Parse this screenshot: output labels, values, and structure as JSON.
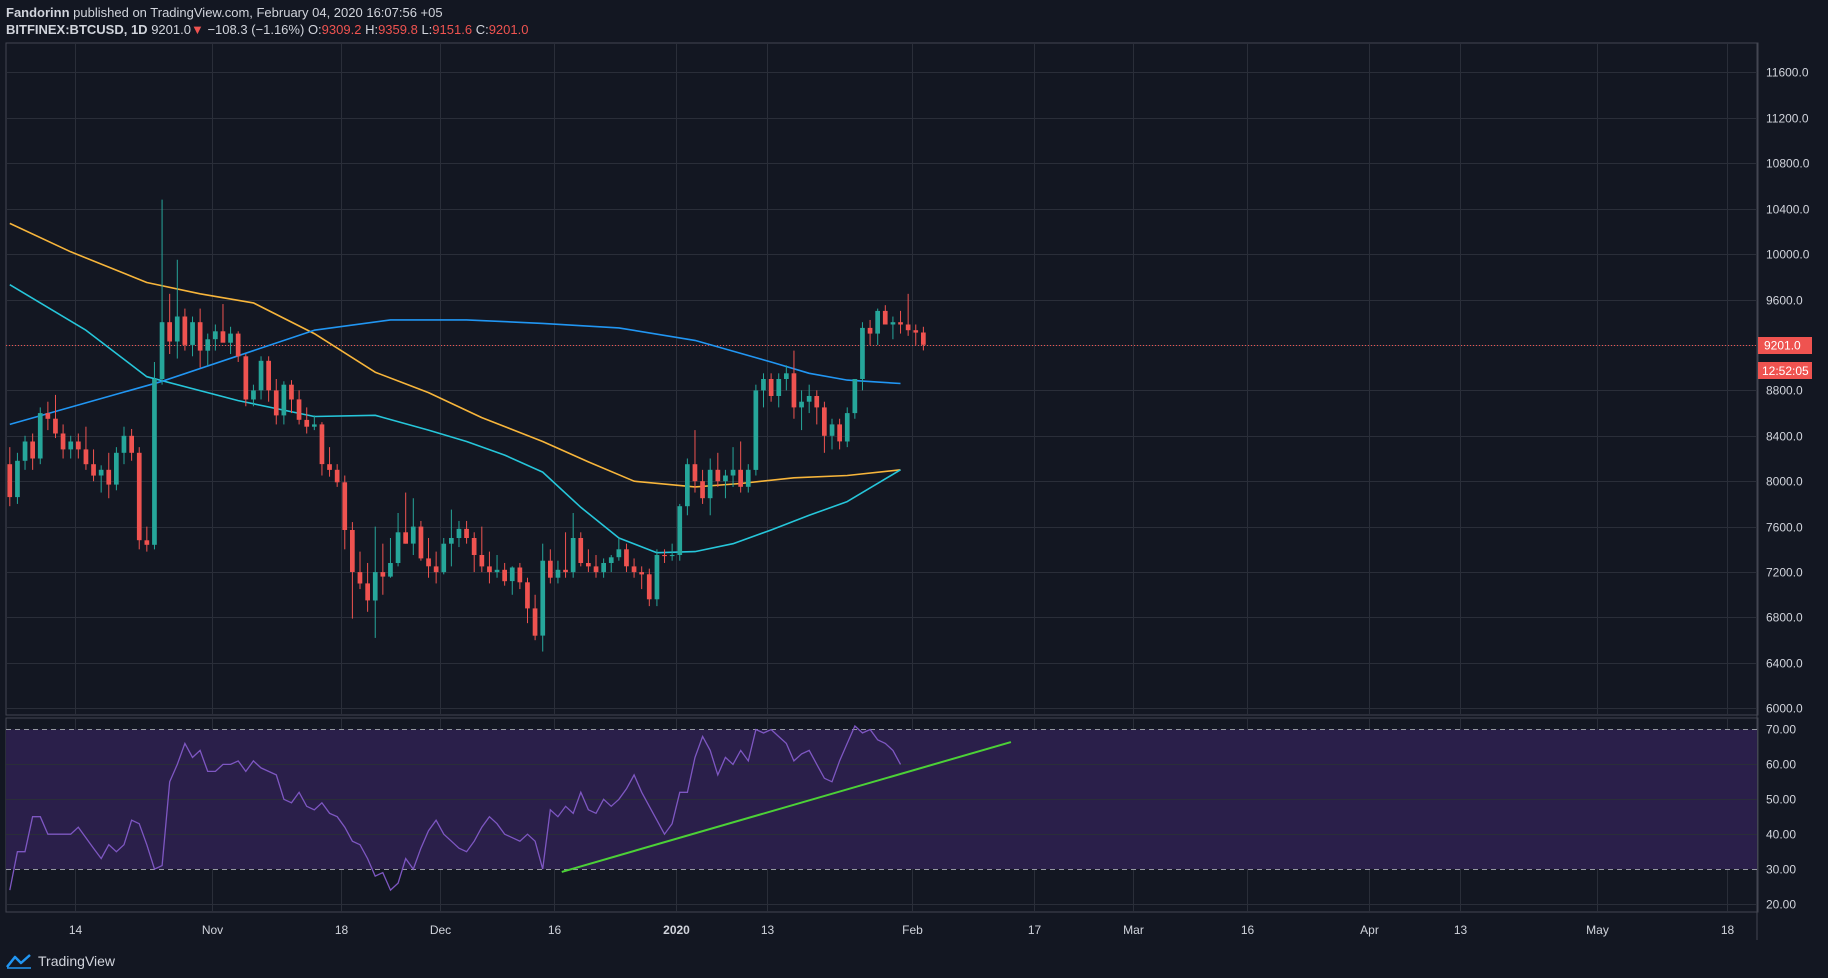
{
  "header": {
    "author": "Fandorinn",
    "published_text": "published on TradingView.com, February 04, 2020 16:07:56 +05",
    "symbol": "BITFINEX:BTCUSD, 1D",
    "last": "9201.0",
    "change_arrow": "▼",
    "change": "−108.3 (−1.16%)",
    "o_label": "O:",
    "o_value": "9309.2",
    "h_label": "H:",
    "h_value": "9359.8",
    "l_label": "L:",
    "l_value": "9151.6",
    "c_label": "C:",
    "c_value": "9201.0"
  },
  "price_tag": {
    "price": "9201.0",
    "countdown": "12:52:05"
  },
  "footer": {
    "brand": "TradingView",
    "brand_icon": "tradingview-logo-icon"
  },
  "colors": {
    "background": "#131722",
    "grid": "#2a2e39",
    "up": "#26a69a",
    "down": "#ef5350",
    "ma_blue": "#2196f3",
    "ma_cyan": "#26c6da",
    "ma_orange": "#f7b53b",
    "rsi_line": "#7e57c2",
    "rsi_band": "#2a1f4a",
    "trendline": "#4cd137"
  },
  "chart_data": [
    {
      "type": "candlestick",
      "title": "",
      "ylim": [
        5950,
        11850
      ],
      "y_ticks": [
        6000,
        6400,
        6800,
        7200,
        7600,
        8000,
        8400,
        8800,
        9200,
        9600,
        10000,
        10400,
        10800,
        11200,
        11600
      ],
      "y_tick_labels": [
        "6000.0",
        "6400.0",
        "6800.0",
        "7200.0",
        "7600.0",
        "8000.0",
        "8400.0",
        "8800.0",
        "9200.0",
        "9600.0",
        "10000.0",
        "10400.0",
        "10800.0",
        "11200.0",
        "11600.0"
      ],
      "x_ticks": [
        {
          "label": "14",
          "date": "2019-10-14",
          "bold": false
        },
        {
          "label": "Nov",
          "date": "2019-11-01",
          "bold": false
        },
        {
          "label": "18",
          "date": "2019-11-18",
          "bold": false
        },
        {
          "label": "Dec",
          "date": "2019-12-01",
          "bold": false
        },
        {
          "label": "16",
          "date": "2019-12-16",
          "bold": false
        },
        {
          "label": "2020",
          "date": "2020-01-01",
          "bold": true
        },
        {
          "label": "13",
          "date": "2020-01-13",
          "bold": false
        },
        {
          "label": "Feb",
          "date": "2020-02-01",
          "bold": false
        },
        {
          "label": "17",
          "date": "2020-02-17",
          "bold": false
        },
        {
          "label": "Mar",
          "date": "2020-03-01",
          "bold": false
        },
        {
          "label": "16",
          "date": "2020-03-16",
          "bold": false
        },
        {
          "label": "Apr",
          "date": "2020-04-01",
          "bold": false
        },
        {
          "label": "13",
          "date": "2020-04-13",
          "bold": false
        },
        {
          "label": "May",
          "date": "2020-05-01",
          "bold": false
        },
        {
          "label": "18",
          "date": "2020-05-18",
          "bold": false
        }
      ],
      "x_range": [
        "2019-10-05",
        "2020-05-22"
      ],
      "first_date": "2019-10-05",
      "last_price": 9201.0,
      "candles": [
        [
          8150,
          8300,
          7780,
          7860
        ],
        [
          7860,
          8250,
          7800,
          8180
        ],
        [
          8180,
          8400,
          8100,
          8350
        ],
        [
          8350,
          8420,
          8100,
          8200
        ],
        [
          8200,
          8650,
          8150,
          8600
        ],
        [
          8600,
          8700,
          8450,
          8550
        ],
        [
          8550,
          8760,
          8380,
          8420
        ],
        [
          8420,
          8500,
          8200,
          8280
        ],
        [
          8280,
          8400,
          8200,
          8350
        ],
        [
          8350,
          8420,
          8200,
          8280
        ],
        [
          8280,
          8480,
          8100,
          8150
        ],
        [
          8150,
          8280,
          8000,
          8050
        ],
        [
          8050,
          8140,
          7900,
          8100
        ],
        [
          8100,
          8250,
          7850,
          7970
        ],
        [
          7970,
          8300,
          7920,
          8250
        ],
        [
          8250,
          8480,
          8150,
          8400
        ],
        [
          8400,
          8460,
          8180,
          8250
        ],
        [
          8250,
          8300,
          7400,
          7480
        ],
        [
          7480,
          7600,
          7380,
          7440
        ],
        [
          7440,
          9050,
          7400,
          8900
        ],
        [
          8900,
          10480,
          8850,
          9400
        ],
        [
          9400,
          9650,
          9120,
          9230
        ],
        [
          9230,
          9950,
          9080,
          9450
        ],
        [
          9450,
          9520,
          9150,
          9200
        ],
        [
          9200,
          9450,
          9100,
          9400
        ],
        [
          9400,
          9520,
          9000,
          9150
        ],
        [
          9150,
          9300,
          9020,
          9250
        ],
        [
          9250,
          9380,
          9150,
          9320
        ],
        [
          9320,
          9560,
          9230,
          9220
        ],
        [
          9220,
          9360,
          9120,
          9300
        ],
        [
          9300,
          9320,
          9050,
          9100
        ],
        [
          9100,
          9120,
          8660,
          8720
        ],
        [
          8720,
          8850,
          8660,
          8800
        ],
        [
          8800,
          9100,
          8720,
          9060
        ],
        [
          9060,
          9100,
          8700,
          8800
        ],
        [
          8800,
          8900,
          8500,
          8580
        ],
        [
          8580,
          8880,
          8500,
          8850
        ],
        [
          8850,
          8890,
          8600,
          8720
        ],
        [
          8720,
          8800,
          8500,
          8540
        ],
        [
          8540,
          8650,
          8420,
          8480
        ],
        [
          8480,
          8580,
          8450,
          8500
        ],
        [
          8500,
          8520,
          8050,
          8150
        ],
        [
          8150,
          8300,
          8040,
          8100
        ],
        [
          8100,
          8150,
          7950,
          7990
        ],
        [
          7990,
          8050,
          7400,
          7570
        ],
        [
          7570,
          7640,
          6790,
          7200
        ],
        [
          7200,
          7380,
          7050,
          7100
        ],
        [
          7100,
          7280,
          6850,
          6950
        ],
        [
          6950,
          7600,
          6620,
          7200
        ],
        [
          7200,
          7450,
          7000,
          7160
        ],
        [
          7160,
          7500,
          7150,
          7280
        ],
        [
          7280,
          7720,
          7250,
          7550
        ],
        [
          7550,
          7900,
          7450,
          7450
        ],
        [
          7450,
          7850,
          7350,
          7600
        ],
        [
          7600,
          7650,
          7300,
          7320
        ],
        [
          7320,
          7500,
          7150,
          7250
        ],
        [
          7250,
          7380,
          7100,
          7200
        ],
        [
          7200,
          7500,
          7180,
          7450
        ],
        [
          7450,
          7750,
          7250,
          7500
        ],
        [
          7500,
          7650,
          7420,
          7580
        ],
        [
          7580,
          7650,
          7450,
          7500
        ],
        [
          7500,
          7550,
          7200,
          7350
        ],
        [
          7350,
          7600,
          7200,
          7250
        ],
        [
          7250,
          7380,
          7100,
          7200
        ],
        [
          7200,
          7350,
          7150,
          7220
        ],
        [
          7220,
          7280,
          7080,
          7120
        ],
        [
          7120,
          7250,
          7000,
          7240
        ],
        [
          7240,
          7280,
          7050,
          7110
        ],
        [
          7110,
          7150,
          6750,
          6880
        ],
        [
          6880,
          7000,
          6600,
          6640
        ],
        [
          6640,
          7450,
          6500,
          7300
        ],
        [
          7300,
          7400,
          7100,
          7150
        ],
        [
          7150,
          7300,
          7100,
          7220
        ],
        [
          7220,
          7550,
          7150,
          7200
        ],
        [
          7200,
          7720,
          7150,
          7500
        ],
        [
          7500,
          7550,
          7250,
          7280
        ],
        [
          7280,
          7400,
          7200,
          7250
        ],
        [
          7250,
          7350,
          7150,
          7200
        ],
        [
          7200,
          7320,
          7150,
          7280
        ],
        [
          7280,
          7350,
          7200,
          7330
        ],
        [
          7330,
          7500,
          7300,
          7400
        ],
        [
          7400,
          7450,
          7200,
          7250
        ],
        [
          7250,
          7320,
          7150,
          7200
        ],
        [
          7200,
          7250,
          7050,
          7180
        ],
        [
          7180,
          7230,
          6900,
          6960
        ],
        [
          6960,
          7400,
          6900,
          7350
        ],
        [
          7350,
          7400,
          7280,
          7340
        ],
        [
          7340,
          7450,
          7300,
          7350
        ],
        [
          7350,
          7800,
          7300,
          7780
        ],
        [
          7780,
          8200,
          7700,
          8150
        ],
        [
          8150,
          8450,
          7900,
          8000
        ],
        [
          8000,
          8100,
          7800,
          7850
        ],
        [
          7850,
          8200,
          7700,
          8100
        ],
        [
          8100,
          8250,
          7950,
          8000
        ],
        [
          8000,
          8100,
          7850,
          8050
        ],
        [
          8050,
          8300,
          7950,
          8100
        ],
        [
          8100,
          8350,
          7900,
          7950
        ],
        [
          7950,
          8150,
          7900,
          8100
        ],
        [
          8100,
          8850,
          8050,
          8800
        ],
        [
          8800,
          8950,
          8650,
          8900
        ],
        [
          8900,
          8950,
          8700,
          8750
        ],
        [
          8750,
          8950,
          8650,
          8900
        ],
        [
          8900,
          9020,
          8800,
          8950
        ],
        [
          8950,
          9150,
          8550,
          8650
        ],
        [
          8650,
          8800,
          8450,
          8700
        ],
        [
          8700,
          8850,
          8600,
          8750
        ],
        [
          8750,
          8800,
          8500,
          8650
        ],
        [
          8650,
          8700,
          8250,
          8400
        ],
        [
          8400,
          8550,
          8280,
          8500
        ],
        [
          8500,
          8550,
          8280,
          8350
        ],
        [
          8350,
          8650,
          8300,
          8600
        ],
        [
          8600,
          8900,
          8550,
          8900
        ],
        [
          8900,
          9400,
          8800,
          9350
        ],
        [
          9350,
          9420,
          9200,
          9300
        ],
        [
          9300,
          9520,
          9200,
          9500
        ],
        [
          9500,
          9550,
          9380,
          9380
        ],
        [
          9380,
          9450,
          9250,
          9400
        ],
        [
          9400,
          9500,
          9300,
          9380
        ],
        [
          9380,
          9650,
          9280,
          9330
        ],
        [
          9330,
          9380,
          9200,
          9309.2
        ],
        [
          9309.2,
          9359.8,
          9151.6,
          9201
        ]
      ],
      "ma_blue": [
        [
          0,
          8500
        ],
        [
          20,
          8880
        ],
        [
          40,
          9330
        ],
        [
          50,
          9420
        ],
        [
          60,
          9420
        ],
        [
          70,
          9390
        ],
        [
          80,
          9350
        ],
        [
          90,
          9240
        ],
        [
          100,
          9050
        ],
        [
          105,
          8950
        ],
        [
          110,
          8890
        ],
        [
          117,
          8860
        ]
      ],
      "ma_cyan": [
        [
          0,
          9730
        ],
        [
          10,
          9330
        ],
        [
          18,
          8920
        ],
        [
          30,
          8710
        ],
        [
          40,
          8570
        ],
        [
          48,
          8580
        ],
        [
          55,
          8450
        ],
        [
          60,
          8350
        ],
        [
          65,
          8230
        ],
        [
          70,
          8080
        ],
        [
          75,
          7770
        ],
        [
          80,
          7500
        ],
        [
          85,
          7370
        ],
        [
          90,
          7380
        ],
        [
          95,
          7450
        ],
        [
          100,
          7570
        ],
        [
          105,
          7700
        ],
        [
          110,
          7820
        ],
        [
          117,
          8100
        ]
      ],
      "ma_orange": [
        [
          0,
          10270
        ],
        [
          8,
          10020
        ],
        [
          18,
          9750
        ],
        [
          25,
          9650
        ],
        [
          32,
          9570
        ],
        [
          40,
          9300
        ],
        [
          48,
          8960
        ],
        [
          55,
          8780
        ],
        [
          62,
          8560
        ],
        [
          70,
          8350
        ],
        [
          76,
          8170
        ],
        [
          82,
          8000
        ],
        [
          90,
          7950
        ],
        [
          96,
          7980
        ],
        [
          103,
          8030
        ],
        [
          110,
          8050
        ],
        [
          117,
          8100
        ]
      ]
    },
    {
      "type": "line",
      "title": "",
      "ylim": [
        18,
        73
      ],
      "y_ticks": [
        20,
        30,
        40,
        50,
        60,
        70
      ],
      "y_tick_labels": [
        "20.00",
        "30.00",
        "40.00",
        "50.00",
        "60.00",
        "70.00"
      ],
      "band": [
        30,
        70
      ],
      "series": [
        {
          "values": [
            24,
            35,
            35,
            45,
            45,
            40,
            40,
            40,
            40,
            42,
            39,
            36,
            33,
            37,
            35,
            37,
            44,
            43,
            37,
            30,
            31,
            55,
            60,
            66,
            62,
            64,
            58,
            58,
            60,
            60,
            61,
            58,
            61,
            59,
            58,
            57,
            50,
            49,
            52,
            48,
            47,
            49,
            46,
            45,
            42,
            38,
            37,
            33,
            28,
            29,
            24,
            26,
            33,
            30,
            36,
            41,
            44,
            40,
            38,
            36,
            35,
            38,
            42,
            45,
            43,
            40,
            39,
            38,
            40,
            38,
            30,
            47,
            45,
            48,
            46,
            52,
            47,
            46,
            50,
            48,
            50,
            53,
            57,
            52,
            48,
            44,
            40,
            43,
            52,
            52,
            62,
            68,
            64,
            57,
            62,
            60,
            64,
            61,
            70,
            69,
            70,
            68,
            66,
            61,
            63,
            64,
            60,
            56,
            55,
            61,
            66,
            71,
            69,
            70,
            67,
            66,
            64,
            60
          ]
        }
      ],
      "trendline": [
        [
          "2019-12-17",
          29.2
        ],
        [
          "2020-02-14",
          66.4
        ]
      ]
    }
  ]
}
